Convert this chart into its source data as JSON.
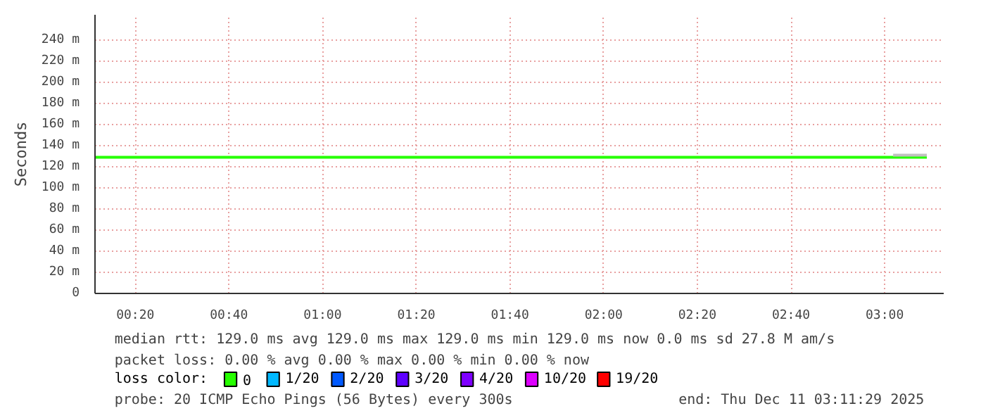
{
  "chart_data": {
    "type": "line",
    "ylabel": "Seconds",
    "x": [
      0.19,
      3.15
    ],
    "xlim": [
      0.19,
      3.21
    ],
    "xticks": [
      {
        "value": 0.3333,
        "label": "00:20"
      },
      {
        "value": 0.6667,
        "label": "00:40"
      },
      {
        "value": 1.0,
        "label": "01:00"
      },
      {
        "value": 1.3333,
        "label": "01:20"
      },
      {
        "value": 1.6667,
        "label": "01:40"
      },
      {
        "value": 2.0,
        "label": "02:00"
      },
      {
        "value": 2.3333,
        "label": "02:20"
      },
      {
        "value": 2.6667,
        "label": "02:40"
      },
      {
        "value": 3.0,
        "label": "03:00"
      }
    ],
    "ylim": [
      0,
      264
    ],
    "yticks": [
      0,
      {
        "value": 20,
        "label": "20 m"
      },
      {
        "value": 40,
        "label": "40 m"
      },
      {
        "value": 60,
        "label": "60 m"
      },
      {
        "value": 80,
        "label": "80 m"
      },
      {
        "value": 100,
        "label": "100 m"
      },
      {
        "value": 120,
        "label": "120 m"
      },
      {
        "value": 140,
        "label": "140 m"
      },
      {
        "value": 160,
        "label": "160 m"
      },
      {
        "value": 180,
        "label": "180 m"
      },
      {
        "value": 200,
        "label": "200 m"
      },
      {
        "value": 220,
        "label": "220 m"
      },
      {
        "value": 240,
        "label": "240 m"
      }
    ],
    "grid": true,
    "legend": "bottom",
    "legend_title": "loss color:",
    "series": [
      {
        "name": "0",
        "color": "#26ff00",
        "values": [
          129,
          129
        ]
      },
      {
        "name": "1/20",
        "color": "#00b8ff",
        "values": [
          null,
          null
        ]
      },
      {
        "name": "2/20",
        "color": "#0059ff",
        "values": [
          null,
          null
        ]
      },
      {
        "name": "3/20",
        "color": "#5e00ff",
        "values": [
          null,
          null
        ]
      },
      {
        "name": "4/20",
        "color": "#7e00ff",
        "values": [
          null,
          null
        ]
      },
      {
        "name": "10/20",
        "color": "#dd00ff",
        "values": [
          null,
          null
        ]
      },
      {
        "name": "19/20",
        "color": "#ff0000",
        "values": [
          null,
          null
        ]
      },
      {
        "color": "#c0c0c0",
        "x": [
          3.03,
          3.15
        ],
        "values": [
          131,
          131
        ]
      }
    ],
    "annotations": [
      "median rtt:  129.0 ms avg  129.0 ms max  129.0 ms min  129.0 ms now  0.0 ms sd  27.8 M am/s",
      "packet loss: 0.00 % avg  0.00 % max  0.00 % min  0.00 % now",
      "probe:       20 ICMP Echo Pings (56 Bytes) every 300s",
      "end: Thu Dec 11 03:11:29 2025"
    ]
  }
}
